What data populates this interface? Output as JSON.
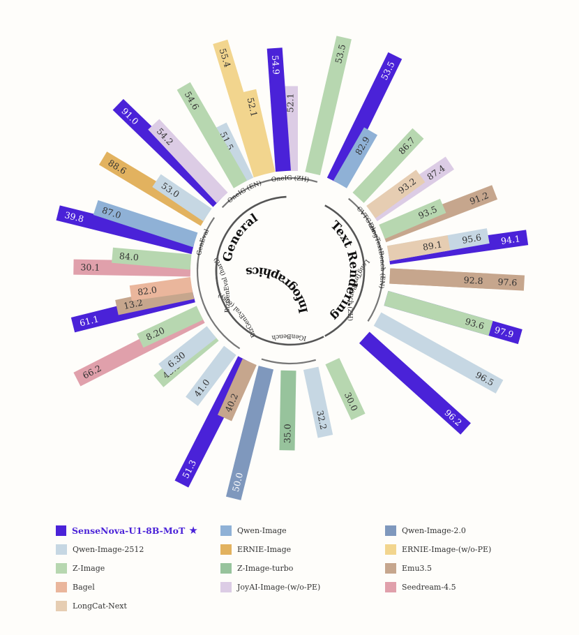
{
  "chart_data": {
    "type": "bar",
    "layout": "radial",
    "highlight_model": "SenseNova-U1-8B-MoT",
    "groups": [
      {
        "name": "General",
        "benchmarks": [
          "GenEval",
          "OneIG (EN)",
          "OneIG (ZH)"
        ]
      },
      {
        "name": "Text Rendering",
        "benchmarks": [
          "CVTG-2k",
          "LongTextBench (EN)",
          "LongTextBench (ZH)"
        ]
      },
      {
        "name": "Infographics",
        "benchmarks": [
          "IGenBench",
          "BizGenEval (easy)",
          "BizGenEval (hard)"
        ]
      }
    ],
    "benchmarks": [
      {
        "name": "OneIG (ZH)",
        "values": [
          {
            "model": "Qwen-Image-2512",
            "label": "51.5",
            "value": 51.5
          },
          {
            "model": "ERNIE-Image-(w/o-PE)",
            "label": "52.1",
            "value": 52.1
          },
          {
            "model": "JoyAI-Image-(w/o-PE)",
            "label": "52.1",
            "value": 52.1
          },
          {
            "model": "Z-Image",
            "label": "53.5",
            "value": 53.5
          },
          {
            "model": "SenseNova-U1-8B-MoT",
            "label": "53.5",
            "value": 53.5
          }
        ]
      },
      {
        "name": "CVTG-2k",
        "values": [
          {
            "model": "Qwen-Image",
            "label": "82.9",
            "value": 82.9
          },
          {
            "model": "Z-Image",
            "label": "86.7",
            "value": 86.7
          },
          {
            "model": "JoyAI-Image-(w/o-PE)",
            "label": "87.4",
            "value": 87.4
          },
          {
            "model": "Emu3.5",
            "label": "91.2",
            "value": 91.2
          },
          {
            "model": "SenseNova-U1-8B-MoT",
            "label": "94.1",
            "value": 94.1
          }
        ]
      },
      {
        "name": "LongTextBench (EN)",
        "values": [
          {
            "model": "LongCat-Next",
            "label": "93.2",
            "value": 93.2
          },
          {
            "model": "Z-Image",
            "label": "93.5",
            "value": 93.5
          },
          {
            "model": "Qwen-Image-2512",
            "label": "95.6",
            "value": 95.6
          },
          {
            "model": "Emu3.5",
            "label": "97.6",
            "value": 97.6
          },
          {
            "model": "SenseNova-U1-8B-MoT",
            "label": "97.9",
            "value": 97.9
          }
        ]
      },
      {
        "name": "LongTextBench (ZH)",
        "values": [
          {
            "model": "LongCat-Next",
            "label": "89.1",
            "value": 89.1
          },
          {
            "model": "Emu3.5",
            "label": "92.8",
            "value": 92.8
          },
          {
            "model": "Z-Image",
            "label": "93.6",
            "value": 93.6
          },
          {
            "model": "Qwen-Image-2512",
            "label": "96.5",
            "value": 96.5
          },
          {
            "model": "SenseNova-U1-8B-MoT",
            "label": "96.2",
            "value": 96.2
          }
        ]
      },
      {
        "name": "IGenBench",
        "values": [
          {
            "model": "Z-Image",
            "label": "30.0",
            "value": 30.0
          },
          {
            "model": "Qwen-Image-2512",
            "label": "32.2",
            "value": 32.2
          },
          {
            "model": "Z-Image-turbo",
            "label": "35.0",
            "value": 35.0
          },
          {
            "model": "Qwen-Image-2.0",
            "label": "50.0",
            "value": 50.0
          },
          {
            "model": "SenseNova-U1-8B-MoT",
            "label": "51.3",
            "value": 51.3
          }
        ]
      },
      {
        "name": "BizGenEval (easy)",
        "values": [
          {
            "model": "Emu3.5",
            "label": "40.2",
            "value": 40.2
          },
          {
            "model": "Qwen-Image-2512",
            "label": "41.0",
            "value": 41.0
          },
          {
            "model": "Z-Image",
            "label": "43.8",
            "value": 43.8
          },
          {
            "model": "Seedream-4.5",
            "label": "66.2",
            "value": 66.2
          },
          {
            "model": "SenseNova-U1-8B-MoT",
            "label": "61.1",
            "value": 61.1
          }
        ]
      },
      {
        "name": "BizGenEval (hard)",
        "values": [
          {
            "model": "Qwen-Image-2512",
            "label": "6.30",
            "value": 6.3
          },
          {
            "model": "Z-Image",
            "label": "8.20",
            "value": 8.2
          },
          {
            "model": "Emu3.5",
            "label": "13.2",
            "value": 13.2
          },
          {
            "model": "Seedream-4.5",
            "label": "30.1",
            "value": 30.1
          },
          {
            "model": "SenseNova-U1-8B-MoT",
            "label": "39.8",
            "value": 39.8
          }
        ]
      },
      {
        "name": "GenEval",
        "values": [
          {
            "model": "Bagel",
            "label": "82.0",
            "value": 82.0
          },
          {
            "model": "Z-Image",
            "label": "84.0",
            "value": 84.0
          },
          {
            "model": "Qwen-Image",
            "label": "87.0",
            "value": 87.0
          },
          {
            "model": "ERNIE-Image",
            "label": "88.6",
            "value": 88.6
          },
          {
            "model": "SenseNova-U1-8B-MoT",
            "label": "91.0",
            "value": 91.0
          }
        ]
      },
      {
        "name": "OneIG (EN)",
        "values": [
          {
            "model": "Qwen-Image-2512",
            "label": "53.0",
            "value": 53.0
          },
          {
            "model": "JoyAI-Image-(w/o-PE)",
            "label": "54.2",
            "value": 54.2
          },
          {
            "model": "Z-Image",
            "label": "54.6",
            "value": 54.6
          },
          {
            "model": "ERNIE-Image-(w/o-PE)",
            "label": "55.4",
            "value": 55.4
          },
          {
            "model": "SenseNova-U1-8B-MoT",
            "label": "54.9",
            "value": 54.9
          }
        ]
      }
    ],
    "colors": {
      "SenseNova-U1-8B-MoT": "#4a22d8",
      "Qwen-Image": "#8fb1d6",
      "Qwen-Image-2.0": "#7f98bd",
      "Qwen-Image-2512": "#c6d7e3",
      "ERNIE-Image": "#e2b25f",
      "ERNIE-Image-(w/o-PE)": "#f2d58e",
      "Z-Image": "#b7d7b0",
      "Z-Image-turbo": "#97c39c",
      "Emu3.5": "#c6a68d",
      "Bagel": "#eab69c",
      "JoyAI-Image-(w/o-PE)": "#dccce5",
      "Seedream-4.5": "#e0a0ab",
      "LongCat-Next": "#e6cdb2"
    },
    "legend": [
      "SenseNova-U1-8B-MoT",
      "Qwen-Image",
      "Qwen-Image-2.0",
      "Qwen-Image-2512",
      "ERNIE-Image",
      "ERNIE-Image-(w/o-PE)",
      "Z-Image",
      "Z-Image-turbo",
      "Emu3.5",
      "Bagel",
      "JoyAI-Image-(w/o-PE)",
      "Seedream-4.5",
      "LongCat-Next"
    ],
    "legend_placement": "bottom",
    "highlight_marker": "★"
  }
}
